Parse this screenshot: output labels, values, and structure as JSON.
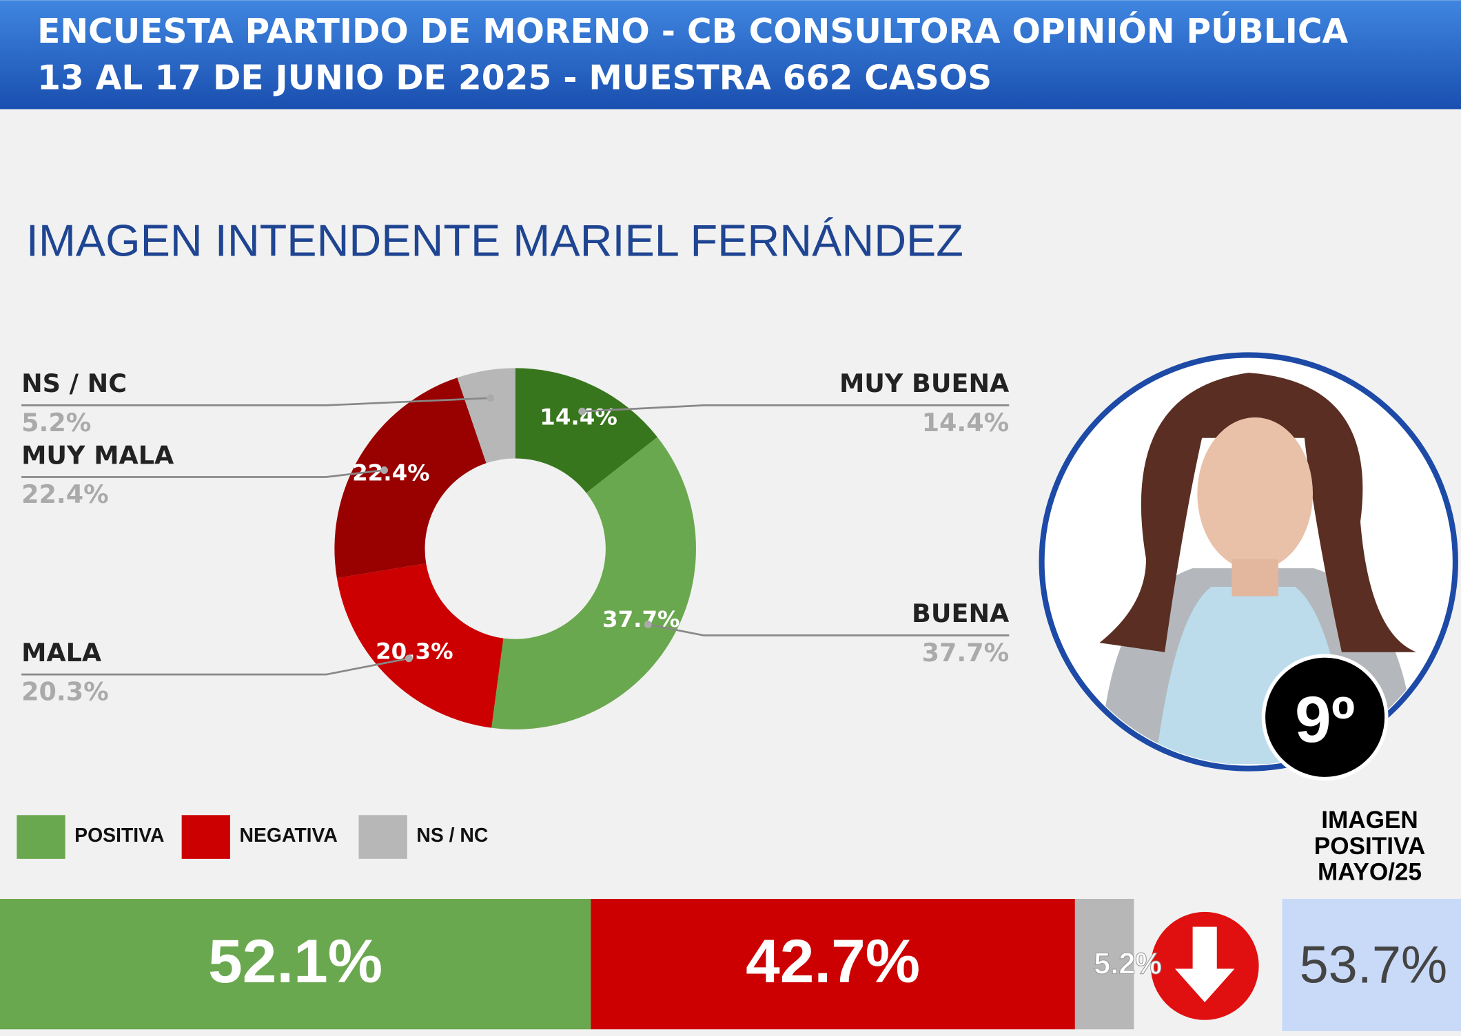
{
  "header": {
    "lines": [
      "ENCUESTA PARTIDO DE MORENO - CB CONSULTORA OPINIÓN PÚBLICA",
      "13 AL 17 DE JUNIO DE 2025 - MUESTRA 662 CASOS"
    ]
  },
  "chart_data": [
    {
      "type": "pie",
      "title": "IMAGEN INTENDENTE  MARIEL FERNÁNDEZ",
      "donut": true,
      "categories": [
        "MUY BUENA",
        "BUENA",
        "MALA",
        "MUY MALA",
        "NS / NC"
      ],
      "values": [
        14.4,
        37.7,
        20.3,
        22.4,
        5.2
      ],
      "value_labels": [
        "14.4%",
        "37.7%",
        "20.3%",
        "22.4%",
        "5.2%"
      ],
      "colors": [
        "#38761d",
        "#6aa84f",
        "#cc0000",
        "#990000",
        "#b7b7b7"
      ]
    },
    {
      "type": "stacked-bar",
      "categories": [
        ""
      ],
      "series": [
        {
          "name": "POSITIVA",
          "color": "#6aa84f",
          "values": [
            52.1
          ],
          "value_labels": [
            "52.1%"
          ]
        },
        {
          "name": "NEGATIVA",
          "color": "#cc0000",
          "values": [
            42.7
          ],
          "value_labels": [
            "42.7%"
          ]
        },
        {
          "name": "NS / NC",
          "color": "#b7b7b7",
          "values": [
            5.2
          ],
          "value_labels": [
            "5.2%"
          ]
        }
      ]
    }
  ],
  "ranking": "9º",
  "comparison": {
    "title": [
      "IMAGEN",
      "POSITIVA",
      "MAYO/25"
    ],
    "value_label": "53.7%"
  }
}
